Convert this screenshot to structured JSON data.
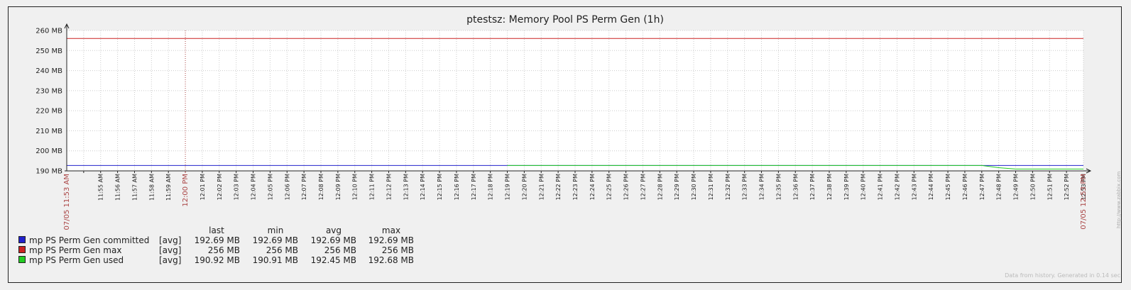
{
  "colors": {
    "background": "#f0f0f0",
    "plot_bg": "#ffffff",
    "grid": "#cccccc",
    "axis": "#222222",
    "highlight": "#aa4444"
  },
  "footer_text": "Data from history. Generated in 0.14 sec",
  "side_url": "http://www.zabbix.com",
  "chart_data": {
    "type": "line",
    "title": "ptestsz: Memory Pool PS Perm Gen (1h)",
    "ylim": [
      190,
      260
    ],
    "yticks": [
      "190 MB",
      "200 MB",
      "210 MB",
      "220 MB",
      "230 MB",
      "240 MB",
      "250 MB",
      "260 MB"
    ],
    "xlim": [
      0,
      60
    ],
    "grid": true,
    "x_start_label": "07/05 11:53 AM",
    "x_end_label": "07/05 12:53 PM",
    "x_ticks": [
      {
        "t": 2,
        "label": "11:55 AM"
      },
      {
        "t": 3,
        "label": "11:56 AM"
      },
      {
        "t": 4,
        "label": "11:57 AM"
      },
      {
        "t": 5,
        "label": "11:58 AM"
      },
      {
        "t": 6,
        "label": "11:59 AM"
      },
      {
        "t": 7,
        "label": "12:00 PM",
        "major": true
      },
      {
        "t": 8,
        "label": "12:01 PM"
      },
      {
        "t": 9,
        "label": "12:02 PM"
      },
      {
        "t": 10,
        "label": "12:03 PM"
      },
      {
        "t": 11,
        "label": "12:04 PM"
      },
      {
        "t": 12,
        "label": "12:05 PM"
      },
      {
        "t": 13,
        "label": "12:06 PM"
      },
      {
        "t": 14,
        "label": "12:07 PM"
      },
      {
        "t": 15,
        "label": "12:08 PM"
      },
      {
        "t": 16,
        "label": "12:09 PM"
      },
      {
        "t": 17,
        "label": "12:10 PM"
      },
      {
        "t": 18,
        "label": "12:11 PM"
      },
      {
        "t": 19,
        "label": "12:12 PM"
      },
      {
        "t": 20,
        "label": "12:13 PM"
      },
      {
        "t": 21,
        "label": "12:14 PM"
      },
      {
        "t": 22,
        "label": "12:15 PM"
      },
      {
        "t": 23,
        "label": "12:16 PM"
      },
      {
        "t": 24,
        "label": "12:17 PM"
      },
      {
        "t": 25,
        "label": "12:18 PM"
      },
      {
        "t": 26,
        "label": "12:19 PM"
      },
      {
        "t": 27,
        "label": "12:20 PM"
      },
      {
        "t": 28,
        "label": "12:21 PM"
      },
      {
        "t": 29,
        "label": "12:22 PM"
      },
      {
        "t": 30,
        "label": "12:23 PM"
      },
      {
        "t": 31,
        "label": "12:24 PM"
      },
      {
        "t": 32,
        "label": "12:25 PM"
      },
      {
        "t": 33,
        "label": "12:26 PM"
      },
      {
        "t": 34,
        "label": "12:27 PM"
      },
      {
        "t": 35,
        "label": "12:28 PM"
      },
      {
        "t": 36,
        "label": "12:29 PM"
      },
      {
        "t": 37,
        "label": "12:30 PM"
      },
      {
        "t": 38,
        "label": "12:31 PM"
      },
      {
        "t": 39,
        "label": "12:32 PM"
      },
      {
        "t": 40,
        "label": "12:33 PM"
      },
      {
        "t": 41,
        "label": "12:34 PM"
      },
      {
        "t": 42,
        "label": "12:35 PM"
      },
      {
        "t": 43,
        "label": "12:36 PM"
      },
      {
        "t": 44,
        "label": "12:37 PM"
      },
      {
        "t": 45,
        "label": "12:38 PM"
      },
      {
        "t": 46,
        "label": "12:39 PM"
      },
      {
        "t": 47,
        "label": "12:40 PM"
      },
      {
        "t": 48,
        "label": "12:41 PM"
      },
      {
        "t": 49,
        "label": "12:42 PM"
      },
      {
        "t": 50,
        "label": "12:43 PM"
      },
      {
        "t": 51,
        "label": "12:44 PM"
      },
      {
        "t": 52,
        "label": "12:45 PM"
      },
      {
        "t": 53,
        "label": "12:46 PM"
      },
      {
        "t": 54,
        "label": "12:47 PM"
      },
      {
        "t": 55,
        "label": "12:48 PM"
      },
      {
        "t": 56,
        "label": "12:49 PM"
      },
      {
        "t": 57,
        "label": "12:50 PM"
      },
      {
        "t": 58,
        "label": "12:51 PM"
      },
      {
        "t": 59,
        "label": "12:52 PM"
      },
      {
        "t": 60,
        "label": "12:53 PM"
      }
    ],
    "legend_headers": [
      "last",
      "min",
      "avg",
      "max"
    ],
    "series": [
      {
        "name": "mp PS Perm Gen committed",
        "color": "#2222cc",
        "fn": "[avg]",
        "last": "192.69 MB",
        "min": "192.69 MB",
        "avg": "192.69 MB",
        "max": "192.69 MB",
        "points": [
          [
            0,
            192.69
          ],
          [
            54,
            192.69
          ],
          [
            55,
            192.69
          ],
          [
            56,
            192.69
          ],
          [
            60,
            192.69
          ]
        ]
      },
      {
        "name": "mp PS Perm Gen max",
        "color": "#cc2222",
        "fn": "[avg]",
        "last": "256 MB",
        "min": "256 MB",
        "avg": "256 MB",
        "max": "256 MB",
        "points": [
          [
            0,
            256
          ],
          [
            60,
            256
          ]
        ]
      },
      {
        "name": "mp PS Perm Gen used",
        "color": "#22cc22",
        "fn": "[avg]",
        "last": "190.92 MB",
        "min": "190.91 MB",
        "avg": "192.45 MB",
        "max": "192.68 MB",
        "points": [
          [
            26,
            192.68
          ],
          [
            54,
            192.68
          ],
          [
            55,
            191.6
          ],
          [
            56,
            190.92
          ],
          [
            60,
            190.92
          ]
        ]
      }
    ]
  }
}
